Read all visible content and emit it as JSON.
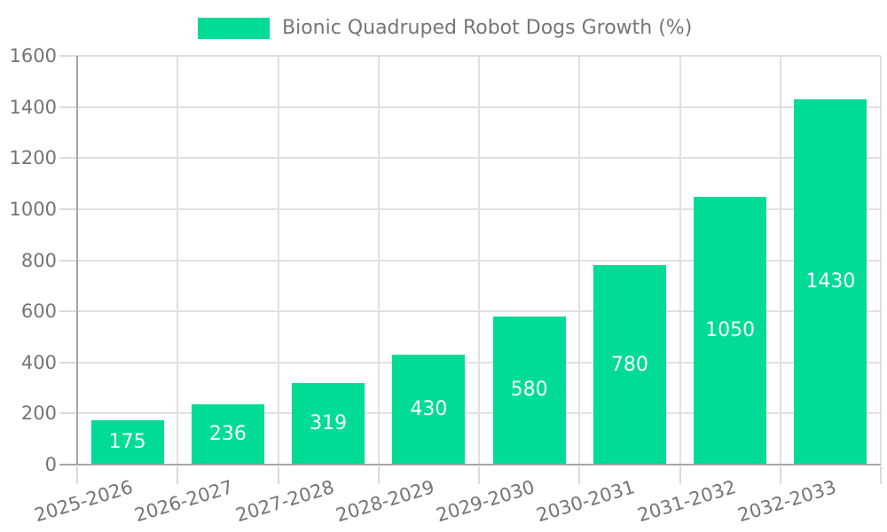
{
  "chart_data": {
    "type": "bar",
    "legend": {
      "label": "Bionic Quadruped Robot Dogs Growth (%)",
      "position": "top-center"
    },
    "categories": [
      "2025-2026",
      "2026-2027",
      "2027-2028",
      "2028-2029",
      "2029-2030",
      "2030-2031",
      "2031-2032",
      "2032-2033"
    ],
    "series": [
      {
        "name": "Bionic Quadruped Robot Dogs Growth (%)",
        "values": [
          175,
          236,
          319,
          430,
          580,
          780,
          1050,
          1430
        ]
      }
    ],
    "value_labels": [
      "175",
      "236",
      "319",
      "430",
      "580",
      "780",
      "1050",
      "1430"
    ],
    "value_label_position": "inside-center",
    "xlabel": "",
    "ylabel": "",
    "ylim": [
      0,
      1600
    ],
    "yticks": [
      0,
      200,
      400,
      600,
      800,
      1000,
      1200,
      1400,
      1600
    ],
    "grid": true,
    "colors": {
      "bar": "#00DC95",
      "value_label": "#FFFFFF",
      "tick_label": "#757575",
      "grid_line": "#E0E0E0",
      "tick_mark": "#DBDBDB",
      "axis_line": "#A6A6A6",
      "background": "#FFFFFF"
    }
  }
}
